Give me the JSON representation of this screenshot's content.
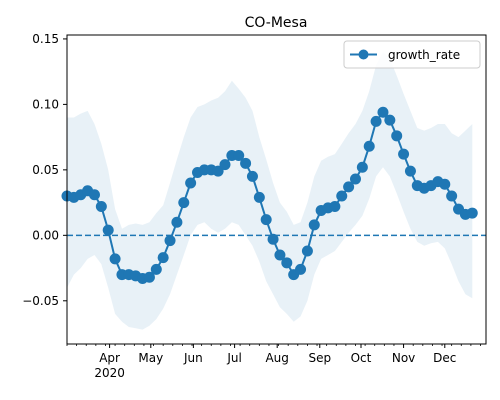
{
  "chart_data": {
    "type": "line",
    "title": "CO-Mesa",
    "xlabel": "",
    "ylabel": "",
    "x_start": "2020-03-01",
    "x_end": "2020-12-31",
    "ylim": [
      -0.083,
      0.153
    ],
    "yticks": [
      -0.05,
      0.0,
      0.05,
      0.1,
      0.15
    ],
    "ytick_labels": [
      "−0.05",
      "0.00",
      "0.05",
      "0.10",
      "0.15"
    ],
    "xticks": [
      {
        "date": "2020-04-01",
        "label": "Apr",
        "sub": "2020"
      },
      {
        "date": "2020-05-01",
        "label": "May",
        "sub": ""
      },
      {
        "date": "2020-06-01",
        "label": "Jun",
        "sub": ""
      },
      {
        "date": "2020-07-01",
        "label": "Jul",
        "sub": ""
      },
      {
        "date": "2020-08-01",
        "label": "Aug",
        "sub": ""
      },
      {
        "date": "2020-09-01",
        "label": "Sep",
        "sub": ""
      },
      {
        "date": "2020-10-01",
        "label": "Oct",
        "sub": ""
      },
      {
        "date": "2020-11-01",
        "label": "Nov",
        "sub": ""
      },
      {
        "date": "2020-12-01",
        "label": "Dec",
        "sub": ""
      }
    ],
    "legend": {
      "placement": "upper right",
      "entries": [
        "growth_rate"
      ]
    },
    "reference_line": {
      "y": 0.0,
      "style": "dashed",
      "color": "#1f77b4"
    },
    "series": [
      {
        "name": "growth_rate",
        "color": "#1f77b4",
        "band_color": "#1f77b4",
        "band_opacity": 0.1,
        "points": [
          {
            "x": "2020-03-01",
            "y": 0.03,
            "lo": -0.04,
            "hi": 0.09
          },
          {
            "x": "2020-03-06",
            "y": 0.029,
            "lo": -0.03,
            "hi": 0.09
          },
          {
            "x": "2020-03-11",
            "y": 0.031,
            "lo": -0.025,
            "hi": 0.093
          },
          {
            "x": "2020-03-16",
            "y": 0.034,
            "lo": -0.018,
            "hi": 0.095
          },
          {
            "x": "2020-03-21",
            "y": 0.031,
            "lo": -0.015,
            "hi": 0.085
          },
          {
            "x": "2020-03-26",
            "y": 0.022,
            "lo": -0.022,
            "hi": 0.07
          },
          {
            "x": "2020-03-31",
            "y": 0.004,
            "lo": -0.04,
            "hi": 0.05
          },
          {
            "x": "2020-04-05",
            "y": -0.018,
            "lo": -0.06,
            "hi": 0.02
          },
          {
            "x": "2020-04-10",
            "y": -0.03,
            "lo": -0.066,
            "hi": 0.005
          },
          {
            "x": "2020-04-15",
            "y": -0.03,
            "lo": -0.07,
            "hi": 0.008
          },
          {
            "x": "2020-04-20",
            "y": -0.031,
            "lo": -0.071,
            "hi": 0.009
          },
          {
            "x": "2020-04-25",
            "y": -0.033,
            "lo": -0.072,
            "hi": 0.008
          },
          {
            "x": "2020-04-30",
            "y": -0.032,
            "lo": -0.069,
            "hi": 0.01
          },
          {
            "x": "2020-05-05",
            "y": -0.026,
            "lo": -0.064,
            "hi": 0.017
          },
          {
            "x": "2020-05-10",
            "y": -0.017,
            "lo": -0.056,
            "hi": 0.023
          },
          {
            "x": "2020-05-15",
            "y": -0.004,
            "lo": -0.045,
            "hi": 0.04
          },
          {
            "x": "2020-05-20",
            "y": 0.01,
            "lo": -0.03,
            "hi": 0.058
          },
          {
            "x": "2020-05-25",
            "y": 0.025,
            "lo": -0.015,
            "hi": 0.075
          },
          {
            "x": "2020-05-30",
            "y": 0.04,
            "lo": 0.0,
            "hi": 0.09
          },
          {
            "x": "2020-06-04",
            "y": 0.048,
            "lo": 0.008,
            "hi": 0.098
          },
          {
            "x": "2020-06-09",
            "y": 0.05,
            "lo": 0.01,
            "hi": 0.1
          },
          {
            "x": "2020-06-14",
            "y": 0.05,
            "lo": 0.005,
            "hi": 0.103
          },
          {
            "x": "2020-06-19",
            "y": 0.049,
            "lo": 0.002,
            "hi": 0.105
          },
          {
            "x": "2020-06-24",
            "y": 0.054,
            "lo": 0.005,
            "hi": 0.11
          },
          {
            "x": "2020-06-29",
            "y": 0.061,
            "lo": 0.01,
            "hi": 0.118
          },
          {
            "x": "2020-07-04",
            "y": 0.061,
            "lo": 0.008,
            "hi": 0.112
          },
          {
            "x": "2020-07-09",
            "y": 0.055,
            "lo": 0.0,
            "hi": 0.105
          },
          {
            "x": "2020-07-14",
            "y": 0.045,
            "lo": -0.008,
            "hi": 0.095
          },
          {
            "x": "2020-07-19",
            "y": 0.029,
            "lo": -0.02,
            "hi": 0.075
          },
          {
            "x": "2020-07-24",
            "y": 0.012,
            "lo": -0.035,
            "hi": 0.058
          },
          {
            "x": "2020-07-29",
            "y": -0.003,
            "lo": -0.045,
            "hi": 0.04
          },
          {
            "x": "2020-08-03",
            "y": -0.015,
            "lo": -0.055,
            "hi": 0.025
          },
          {
            "x": "2020-08-08",
            "y": -0.021,
            "lo": -0.06,
            "hi": 0.018
          },
          {
            "x": "2020-08-13",
            "y": -0.03,
            "lo": -0.066,
            "hi": 0.008
          },
          {
            "x": "2020-08-18",
            "y": -0.026,
            "lo": -0.062,
            "hi": 0.01
          },
          {
            "x": "2020-08-23",
            "y": -0.012,
            "lo": -0.05,
            "hi": 0.025
          },
          {
            "x": "2020-08-28",
            "y": 0.008,
            "lo": -0.03,
            "hi": 0.045
          },
          {
            "x": "2020-09-02",
            "y": 0.019,
            "lo": -0.018,
            "hi": 0.057
          },
          {
            "x": "2020-09-07",
            "y": 0.021,
            "lo": -0.015,
            "hi": 0.06
          },
          {
            "x": "2020-09-12",
            "y": 0.022,
            "lo": -0.012,
            "hi": 0.062
          },
          {
            "x": "2020-09-17",
            "y": 0.03,
            "lo": -0.005,
            "hi": 0.07
          },
          {
            "x": "2020-09-22",
            "y": 0.037,
            "lo": 0.002,
            "hi": 0.078
          },
          {
            "x": "2020-09-27",
            "y": 0.043,
            "lo": 0.008,
            "hi": 0.085
          },
          {
            "x": "2020-10-02",
            "y": 0.052,
            "lo": 0.015,
            "hi": 0.095
          },
          {
            "x": "2020-10-07",
            "y": 0.068,
            "lo": 0.028,
            "hi": 0.11
          },
          {
            "x": "2020-10-12",
            "y": 0.087,
            "lo": 0.045,
            "hi": 0.13
          },
          {
            "x": "2020-10-17",
            "y": 0.094,
            "lo": 0.052,
            "hi": 0.14
          },
          {
            "x": "2020-10-22",
            "y": 0.088,
            "lo": 0.045,
            "hi": 0.135
          },
          {
            "x": "2020-10-27",
            "y": 0.076,
            "lo": 0.032,
            "hi": 0.122
          },
          {
            "x": "2020-11-01",
            "y": 0.062,
            "lo": 0.018,
            "hi": 0.108
          },
          {
            "x": "2020-11-06",
            "y": 0.049,
            "lo": 0.005,
            "hi": 0.095
          },
          {
            "x": "2020-11-11",
            "y": 0.038,
            "lo": -0.005,
            "hi": 0.082
          },
          {
            "x": "2020-11-16",
            "y": 0.036,
            "lo": -0.008,
            "hi": 0.08
          },
          {
            "x": "2020-11-21",
            "y": 0.038,
            "lo": -0.006,
            "hi": 0.082
          },
          {
            "x": "2020-11-26",
            "y": 0.041,
            "lo": -0.005,
            "hi": 0.085
          },
          {
            "x": "2020-12-01",
            "y": 0.039,
            "lo": -0.01,
            "hi": 0.085
          },
          {
            "x": "2020-12-06",
            "y": 0.03,
            "lo": -0.022,
            "hi": 0.078
          },
          {
            "x": "2020-12-11",
            "y": 0.02,
            "lo": -0.035,
            "hi": 0.075
          },
          {
            "x": "2020-12-16",
            "y": 0.016,
            "lo": -0.045,
            "hi": 0.08
          },
          {
            "x": "2020-12-21",
            "y": 0.017,
            "lo": -0.048,
            "hi": 0.085
          }
        ]
      }
    ]
  }
}
